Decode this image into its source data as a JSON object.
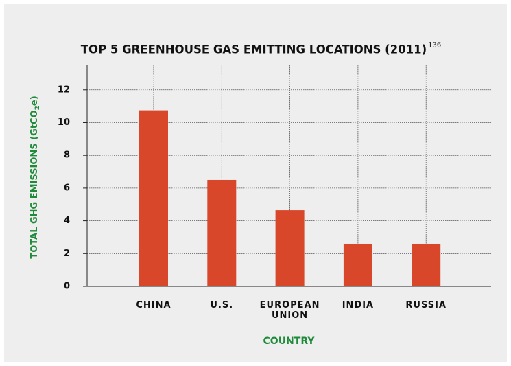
{
  "chart_data": {
    "type": "bar",
    "title": "TOP 5 GREENHOUSE GAS EMITTING LOCATIONS (2011)",
    "title_note": "136",
    "y_label": [
      "TOTAL GHG EMISSIONS (GtCO",
      "2",
      "e)"
    ],
    "x_label": "COUNTRY",
    "categories": [
      "CHINA",
      "U.S.",
      "EUROPEAN UNION",
      "INDIA",
      "RUSSIA"
    ],
    "values": [
      10.75,
      6.5,
      4.65,
      2.6,
      2.6
    ],
    "color": "#d9472b",
    "ylim": [
      0,
      13.5
    ],
    "yticks": [
      0,
      2,
      4,
      6,
      8,
      10,
      12
    ],
    "grid": true
  }
}
